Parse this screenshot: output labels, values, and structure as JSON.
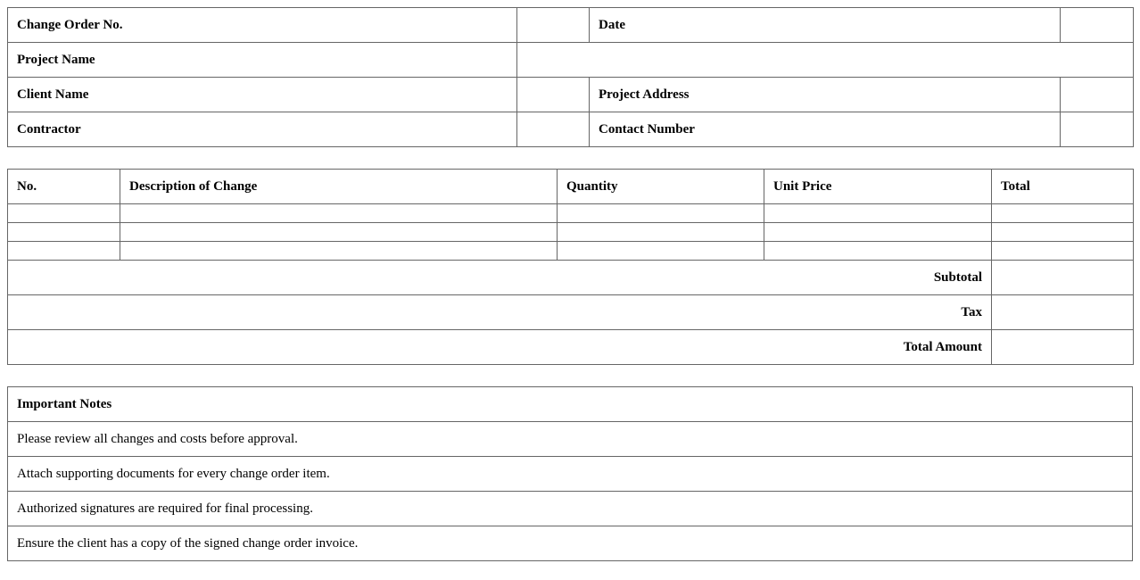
{
  "header": {
    "change_order_no_label": "Change Order No.",
    "change_order_no_value": "",
    "date_label": "Date",
    "date_value": "",
    "project_name_label": "Project Name",
    "project_name_value": "",
    "client_name_label": "Client Name",
    "client_name_value": "",
    "project_address_label": "Project Address",
    "project_address_value": "",
    "contractor_label": "Contractor",
    "contractor_value": "",
    "contact_number_label": "Contact Number",
    "contact_number_value": ""
  },
  "items": {
    "columns": [
      "No.",
      "Description of Change",
      "Quantity",
      "Unit Price",
      "Total"
    ],
    "rows": [
      [
        "",
        "",
        "",
        "",
        ""
      ],
      [
        "",
        "",
        "",
        "",
        ""
      ],
      [
        "",
        "",
        "",
        "",
        ""
      ]
    ],
    "subtotal_label": "Subtotal",
    "subtotal_value": "",
    "tax_label": "Tax",
    "tax_value": "",
    "total_amount_label": "Total Amount",
    "total_amount_value": ""
  },
  "notes": {
    "title": "Important Notes",
    "items": [
      "Please review all changes and costs before approval.",
      "Attach supporting documents for every change order item.",
      "Authorized signatures are required for final processing.",
      "Ensure the client has a copy of the signed change order invoice."
    ]
  }
}
